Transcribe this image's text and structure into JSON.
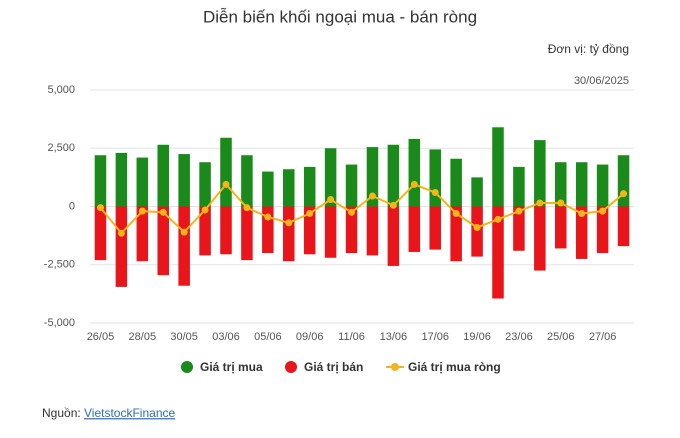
{
  "chart_data": {
    "type": "bar_line",
    "title": "Diễn biến khối ngoại mua - bán ròng",
    "unit_label": "Đơn vị: tỷ đồng",
    "date_label": "30/06/2025",
    "categories": [
      "26/05",
      null,
      "28/05",
      null,
      "30/05",
      null,
      "03/06",
      null,
      "05/06",
      null,
      "09/06",
      null,
      "11/06",
      null,
      "13/06",
      null,
      "17/06",
      null,
      "19/06",
      null,
      "23/06",
      null,
      "25/06",
      null,
      "27/06",
      null
    ],
    "series": [
      {
        "name": "Giá trị mua",
        "kind": "bar",
        "color": "#1a8a1a",
        "values": [
          2200,
          2300,
          2100,
          2650,
          2250,
          1900,
          2950,
          2200,
          1500,
          1600,
          1700,
          2500,
          1800,
          2550,
          2650,
          2900,
          2450,
          2050,
          1250,
          3400,
          1700,
          2850,
          1900,
          1900,
          1800,
          2200
        ]
      },
      {
        "name": "Giá trị bán",
        "kind": "bar",
        "color": "#e8151b",
        "values": [
          -2300,
          -3450,
          -2350,
          -2950,
          -3400,
          -2100,
          -2050,
          -2300,
          -2000,
          -2350,
          -2050,
          -2200,
          -2000,
          -2100,
          -2550,
          -1950,
          -1850,
          -2350,
          -2150,
          -3950,
          -1900,
          -2750,
          -1800,
          -2250,
          -2000,
          -1700
        ]
      },
      {
        "name": "Giá trị mua ròng",
        "kind": "line",
        "color": "#f3b51a",
        "values": [
          -50,
          -1150,
          -200,
          -250,
          -1100,
          -150,
          950,
          -50,
          -450,
          -700,
          -300,
          300,
          -250,
          450,
          50,
          950,
          600,
          -300,
          -900,
          -550,
          -200,
          150,
          150,
          -300,
          -200,
          550
        ]
      }
    ],
    "ylim": [
      -5000,
      5000
    ],
    "yticks": [
      {
        "value": -5000,
        "label": "-5,000"
      },
      {
        "value": -2500,
        "label": "-2,500"
      },
      0,
      {
        "value": 2500,
        "label": "2,500"
      },
      {
        "value": 5000,
        "label": "5,000"
      }
    ],
    "grid": true
  },
  "source": {
    "label": "Nguồn:",
    "link": "VietstockFinance"
  }
}
